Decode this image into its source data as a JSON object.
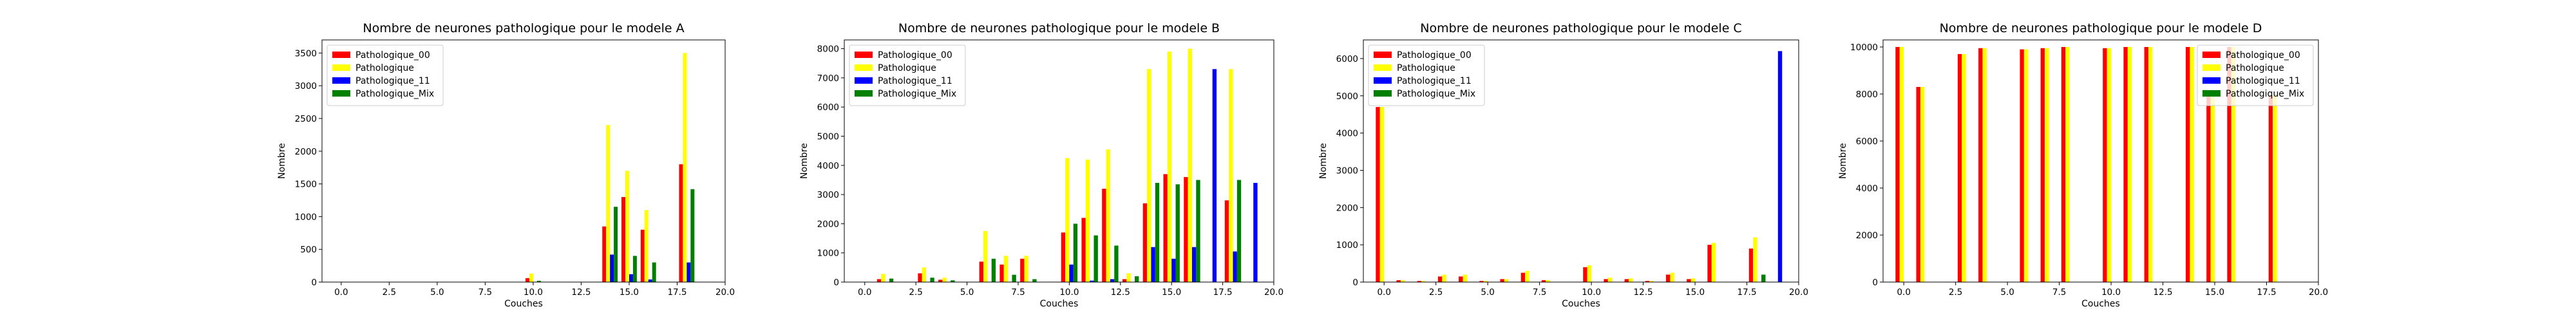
{
  "colors": {
    "Pathologique_00": "#ff0000",
    "Pathologique": "#ffff00",
    "Pathologique_11": "#0000ff",
    "Pathologique_Mix": "#008000"
  },
  "chart_data": [
    {
      "type": "bar",
      "title": "Nombre de neurones pathologique pour le modele A",
      "xlabel": "Couches",
      "ylabel": "Nombre",
      "xlim": [
        -1,
        20
      ],
      "ylim": [
        0,
        3700
      ],
      "xticks": [
        "0.0",
        "2.5",
        "5.0",
        "7.5",
        "10.0",
        "12.5",
        "15.0",
        "17.5",
        "20.0"
      ],
      "yticks": [
        0,
        500,
        1000,
        1500,
        2000,
        2500,
        3000,
        3500
      ],
      "legend": "upper left",
      "x": [
        0,
        1,
        2,
        3,
        4,
        5,
        6,
        7,
        8,
        9,
        10,
        11,
        12,
        13,
        14,
        15,
        16,
        17,
        18
      ],
      "series": [
        {
          "name": "Pathologique_00",
          "values": [
            0,
            0,
            0,
            0,
            0,
            0,
            0,
            0,
            0,
            0,
            60,
            0,
            0,
            0,
            850,
            1300,
            800,
            0,
            1800
          ]
        },
        {
          "name": "Pathologique",
          "values": [
            0,
            0,
            0,
            0,
            0,
            0,
            0,
            0,
            0,
            0,
            130,
            0,
            0,
            0,
            2400,
            1700,
            1100,
            0,
            3500
          ]
        },
        {
          "name": "Pathologique_11",
          "values": [
            0,
            0,
            0,
            0,
            0,
            0,
            0,
            0,
            0,
            0,
            0,
            0,
            0,
            0,
            420,
            120,
            40,
            0,
            300
          ]
        },
        {
          "name": "Pathologique_Mix",
          "values": [
            0,
            0,
            0,
            0,
            0,
            0,
            0,
            0,
            0,
            0,
            20,
            0,
            0,
            0,
            1150,
            400,
            300,
            0,
            1420
          ]
        }
      ]
    },
    {
      "type": "bar",
      "title": "Nombre de neurones pathologique pour le modele B",
      "xlabel": "Couches",
      "ylabel": "Nombre",
      "xlim": [
        -1,
        20
      ],
      "ylim": [
        0,
        8300
      ],
      "xticks": [
        "0.0",
        "2.5",
        "5.0",
        "7.5",
        "10.0",
        "12.5",
        "15.0",
        "17.5",
        "20.0"
      ],
      "yticks": [
        0,
        1000,
        2000,
        3000,
        4000,
        5000,
        6000,
        7000,
        8000
      ],
      "legend": "upper left",
      "x": [
        0,
        1,
        2,
        3,
        4,
        5,
        6,
        7,
        8,
        9,
        10,
        11,
        12,
        13,
        14,
        15,
        16,
        17,
        18,
        19
      ],
      "series": [
        {
          "name": "Pathologique_00",
          "values": [
            0,
            100,
            0,
            300,
            80,
            0,
            700,
            600,
            800,
            0,
            1700,
            2200,
            3200,
            100,
            2700,
            3700,
            3600,
            0,
            2800,
            0
          ]
        },
        {
          "name": "Pathologique",
          "values": [
            0,
            280,
            0,
            500,
            150,
            0,
            1750,
            900,
            900,
            0,
            4250,
            4200,
            4550,
            300,
            7300,
            7900,
            8000,
            0,
            7300,
            0
          ]
        },
        {
          "name": "Pathologique_11",
          "values": [
            0,
            0,
            0,
            0,
            0,
            0,
            0,
            0,
            0,
            0,
            600,
            50,
            100,
            0,
            1200,
            800,
            1200,
            7300,
            1050,
            3400
          ]
        },
        {
          "name": "Pathologique_Mix",
          "values": [
            0,
            120,
            0,
            150,
            60,
            0,
            800,
            250,
            100,
            0,
            2000,
            1600,
            1250,
            200,
            3400,
            3350,
            3500,
            0,
            3500,
            0
          ]
        }
      ]
    },
    {
      "type": "bar",
      "title": "Nombre de neurones pathologique pour le modele C",
      "xlabel": "Couches",
      "ylabel": "Nombre",
      "xlim": [
        -1,
        20
      ],
      "ylim": [
        0,
        6500
      ],
      "xticks": [
        "0.0",
        "2.5",
        "5.0",
        "7.5",
        "10.0",
        "12.5",
        "15.0",
        "17.5",
        "20.0"
      ],
      "yticks": [
        0,
        1000,
        2000,
        3000,
        4000,
        5000,
        6000
      ],
      "legend": "upper left",
      "x": [
        0,
        1,
        2,
        3,
        4,
        5,
        6,
        7,
        8,
        9,
        10,
        11,
        12,
        13,
        14,
        15,
        16,
        17,
        18,
        19
      ],
      "series": [
        {
          "name": "Pathologique_00",
          "values": [
            4700,
            50,
            30,
            150,
            150,
            30,
            80,
            250,
            50,
            0,
            400,
            80,
            80,
            30,
            200,
            80,
            1000,
            0,
            900,
            0
          ]
        },
        {
          "name": "Pathologique",
          "values": [
            4700,
            50,
            30,
            200,
            200,
            30,
            80,
            300,
            50,
            0,
            450,
            120,
            100,
            30,
            250,
            100,
            1050,
            0,
            1200,
            0
          ]
        },
        {
          "name": "Pathologique_11",
          "values": [
            0,
            0,
            0,
            0,
            0,
            0,
            0,
            0,
            0,
            0,
            0,
            0,
            0,
            0,
            0,
            0,
            0,
            0,
            0,
            6200
          ]
        },
        {
          "name": "Pathologique_Mix",
          "values": [
            0,
            0,
            0,
            0,
            0,
            0,
            0,
            0,
            0,
            0,
            0,
            0,
            0,
            0,
            0,
            0,
            0,
            0,
            200,
            0
          ]
        }
      ]
    },
    {
      "type": "bar",
      "title": "Nombre de neurones pathologique pour le modele D",
      "xlabel": "Couches",
      "ylabel": "Nombre",
      "xlim": [
        -1,
        20
      ],
      "ylim": [
        0,
        10300
      ],
      "xticks": [
        "0.0",
        "2.5",
        "5.0",
        "7.5",
        "10.0",
        "12.5",
        "15.0",
        "17.5",
        "20.0"
      ],
      "yticks": [
        0,
        2000,
        4000,
        6000,
        8000,
        10000
      ],
      "legend": "upper right",
      "x": [
        0,
        1,
        2,
        3,
        4,
        5,
        6,
        7,
        8,
        9,
        10,
        11,
        12,
        13,
        14,
        15,
        16,
        17,
        18
      ],
      "series": [
        {
          "name": "Pathologique_00",
          "values": [
            10000,
            8300,
            0,
            9700,
            9950,
            0,
            9900,
            9950,
            10000,
            0,
            9950,
            10000,
            10000,
            0,
            10000,
            7950,
            10000,
            0,
            7950
          ]
        },
        {
          "name": "Pathologique",
          "values": [
            10000,
            8300,
            0,
            9700,
            9950,
            0,
            9900,
            9950,
            10000,
            0,
            9950,
            10000,
            10000,
            0,
            10000,
            7950,
            10000,
            0,
            7950
          ]
        },
        {
          "name": "Pathologique_11",
          "values": [
            0,
            0,
            0,
            0,
            0,
            0,
            0,
            0,
            0,
            0,
            0,
            0,
            0,
            0,
            0,
            0,
            0,
            0,
            0
          ]
        },
        {
          "name": "Pathologique_Mix",
          "values": [
            0,
            0,
            0,
            0,
            0,
            0,
            0,
            0,
            0,
            0,
            0,
            0,
            0,
            0,
            0,
            0,
            0,
            0,
            0
          ]
        }
      ]
    }
  ]
}
